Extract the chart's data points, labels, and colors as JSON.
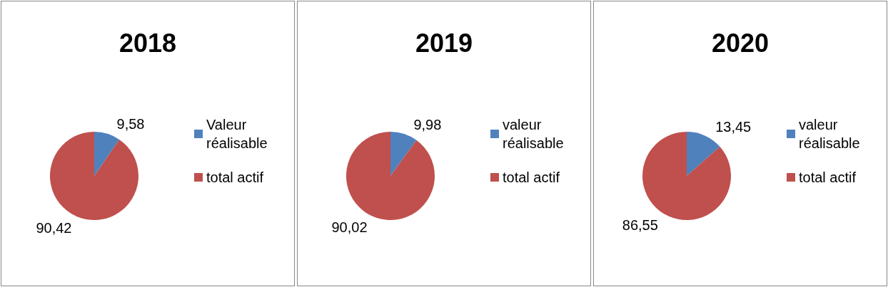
{
  "chart_data": [
    {
      "type": "pie",
      "title": "2018",
      "categories": [
        "Valeur réalisable",
        "total actif"
      ],
      "values": [
        9.58,
        90.42
      ],
      "colors": [
        "#4f81bd",
        "#c0504d"
      ],
      "value_labels": [
        "9,58",
        "90,42"
      ],
      "legend": "right"
    },
    {
      "type": "pie",
      "title": "2019",
      "categories": [
        "valeur réalisable",
        "total actif"
      ],
      "values": [
        9.98,
        90.02
      ],
      "colors": [
        "#4f81bd",
        "#c0504d"
      ],
      "value_labels": [
        "9,98",
        "90,02"
      ],
      "legend": "right"
    },
    {
      "type": "pie",
      "title": "2020",
      "categories": [
        "valeur réalisable",
        "total actif"
      ],
      "values": [
        13.45,
        86.55
      ],
      "colors": [
        "#4f81bd",
        "#c0504d"
      ],
      "value_labels": [
        "13,45",
        "86,55"
      ],
      "legend": "right"
    }
  ]
}
